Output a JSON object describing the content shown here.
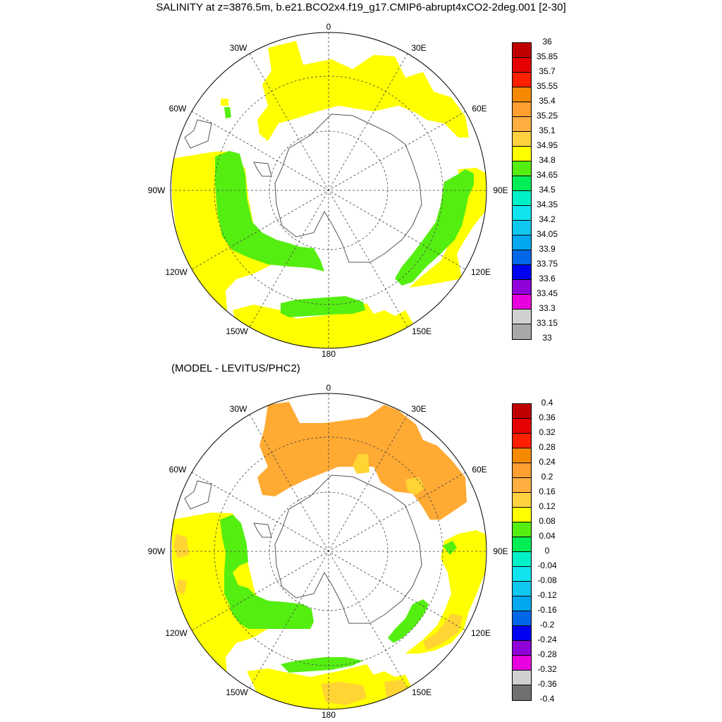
{
  "title": "SALINITY at z=3876.5m, b.e21.BCO2x4.f19_g17.CMIP6-abrupt4xCO2-2deg.001 [2-30]",
  "subtitle": "(MODEL - LEVITUS/PHC2)",
  "longitude_labels": {
    "lon_0": "0",
    "lon_30e": "30E",
    "lon_60e": "60E",
    "lon_90e": "90E",
    "lon_120e": "120E",
    "lon_150e": "150E",
    "lon_180": "180",
    "lon_150w": "150W",
    "lon_120w": "120W",
    "lon_90w": "90W",
    "lon_60w": "60W",
    "lon_30w": "30W"
  },
  "colors": {
    "yellow": "#ffff00",
    "green": "#55ee11",
    "orange": "#ffaa33",
    "light_orange": "#ffd433",
    "land_line": "#555555"
  },
  "legend_top": {
    "labels": [
      "36",
      "35.85",
      "35.7",
      "35.55",
      "35.4",
      "35.25",
      "35.1",
      "34.95",
      "34.8",
      "34.65",
      "34.5",
      "34.35",
      "34.2",
      "34.05",
      "33.9",
      "33.75",
      "33.6",
      "33.45",
      "33.3",
      "33.15",
      "33"
    ],
    "colors": [
      "#c00000",
      "#e60000",
      "#ff2000",
      "#f58a00",
      "#ff9f30",
      "#ffae40",
      "#ffd040",
      "#ffff00",
      "#55ee11",
      "#00ee55",
      "#00f0c8",
      "#10e4ef",
      "#10c8ef",
      "#00a8f0",
      "#0068e8",
      "#0000f0",
      "#9000d8",
      "#e800e0",
      "#d0d0d0",
      "#a8a8a8"
    ]
  },
  "legend_bottom": {
    "labels": [
      "0.4",
      "0.36",
      "0.32",
      "0.28",
      "0.24",
      "0.2",
      "0.16",
      "0.12",
      "0.08",
      "0.04",
      "0",
      "-0.04",
      "-0.08",
      "-0.12",
      "-0.16",
      "-0.2",
      "-0.24",
      "-0.28",
      "-0.32",
      "-0.36",
      "-0.4"
    ],
    "colors": [
      "#c00000",
      "#e60000",
      "#ff2000",
      "#f58a00",
      "#ff9f30",
      "#ffae40",
      "#ffd040",
      "#ffff00",
      "#55ee11",
      "#00ee55",
      "#00f0c8",
      "#10e4ef",
      "#10c8ef",
      "#00a8f0",
      "#0068e8",
      "#0000f0",
      "#9000d8",
      "#e800e0",
      "#d0d0d0",
      "#707070"
    ]
  }
}
